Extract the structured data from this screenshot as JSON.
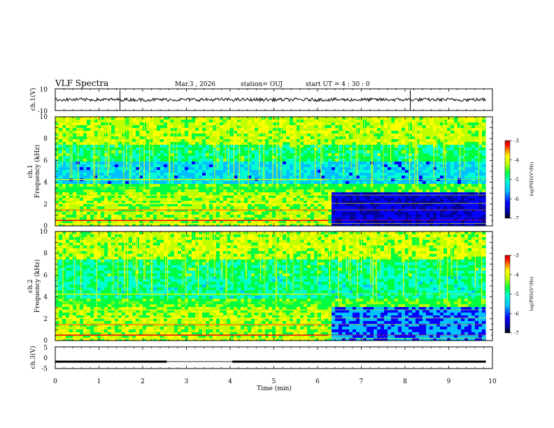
{
  "header": {
    "title": "VLF Spectra",
    "date": "Mar.3 , 2026",
    "station": "station= OUJ",
    "start": "start UT = 4 : 30 : 0"
  },
  "chart_data": [
    {
      "type": "line",
      "panel": "ch1-waveform",
      "ylabel": "ch.1(V)",
      "yticks": [
        "10",
        "-10"
      ],
      "ylim": [
        -10,
        10
      ],
      "xlim": [
        0,
        10
      ],
      "series": [
        {
          "values_description_level": 0,
          "noise_amplitude": 1.5,
          "spikes_min": [
            1.48,
            8.12
          ]
        }
      ]
    },
    {
      "type": "heatmap",
      "panel": "ch1-spectrogram",
      "ylabel": "ch.1\nFrequency (kHz)",
      "ylabel_line1": "ch.1",
      "ylabel_line2": "Frequency (kHz)",
      "xlim": [
        0,
        10
      ],
      "ylim": [
        0,
        10
      ],
      "yticks": [
        "0",
        "2",
        "4",
        "6",
        "8",
        "10"
      ],
      "data_end_min": 9.85,
      "level_change_min": 6.25,
      "colorbar": {
        "label": "log(PSD)(V²/Hz)",
        "range": [
          -7,
          -3
        ],
        "ticks": [
          "-3",
          "-4",
          "-5",
          "-6",
          "-7"
        ]
      }
    },
    {
      "type": "heatmap",
      "panel": "ch2-spectrogram",
      "ylabel_line1": "ch.2",
      "ylabel_line2": "Frequency (kHz)",
      "xlim": [
        0,
        10
      ],
      "ylim": [
        0,
        10
      ],
      "yticks": [
        "0",
        "2",
        "4",
        "6",
        "8",
        "10"
      ],
      "data_end_min": 9.85,
      "level_change_min": 6.25,
      "colorbar": {
        "label": "log(PSD)(V²/Hz)",
        "range": [
          -7,
          -3
        ],
        "ticks": [
          "-3",
          "-4",
          "-5",
          "-6",
          "-7"
        ]
      }
    },
    {
      "type": "line",
      "panel": "ch3-waveform",
      "ylabel": "ch.3(V)",
      "yticks": [
        "5",
        "0",
        "-5"
      ],
      "ylim": [
        -5,
        5
      ],
      "xlim": [
        0,
        10
      ],
      "series": [
        {
          "level": -1.8,
          "gap_min": [
            2.55,
            4.05
          ]
        }
      ]
    }
  ],
  "xaxis": {
    "label": "Time (min)",
    "ticks": [
      "0",
      "1",
      "2",
      "3",
      "4",
      "5",
      "6",
      "7",
      "8",
      "9",
      "10"
    ]
  },
  "colors": {
    "colormap": [
      "#000000",
      "#0000a0",
      "#0000ff",
      "#00c0ff",
      "#00ffd0",
      "#00ff40",
      "#c0ff00",
      "#ffff00",
      "#ff8000",
      "#ff0000",
      "#c00000"
    ]
  }
}
